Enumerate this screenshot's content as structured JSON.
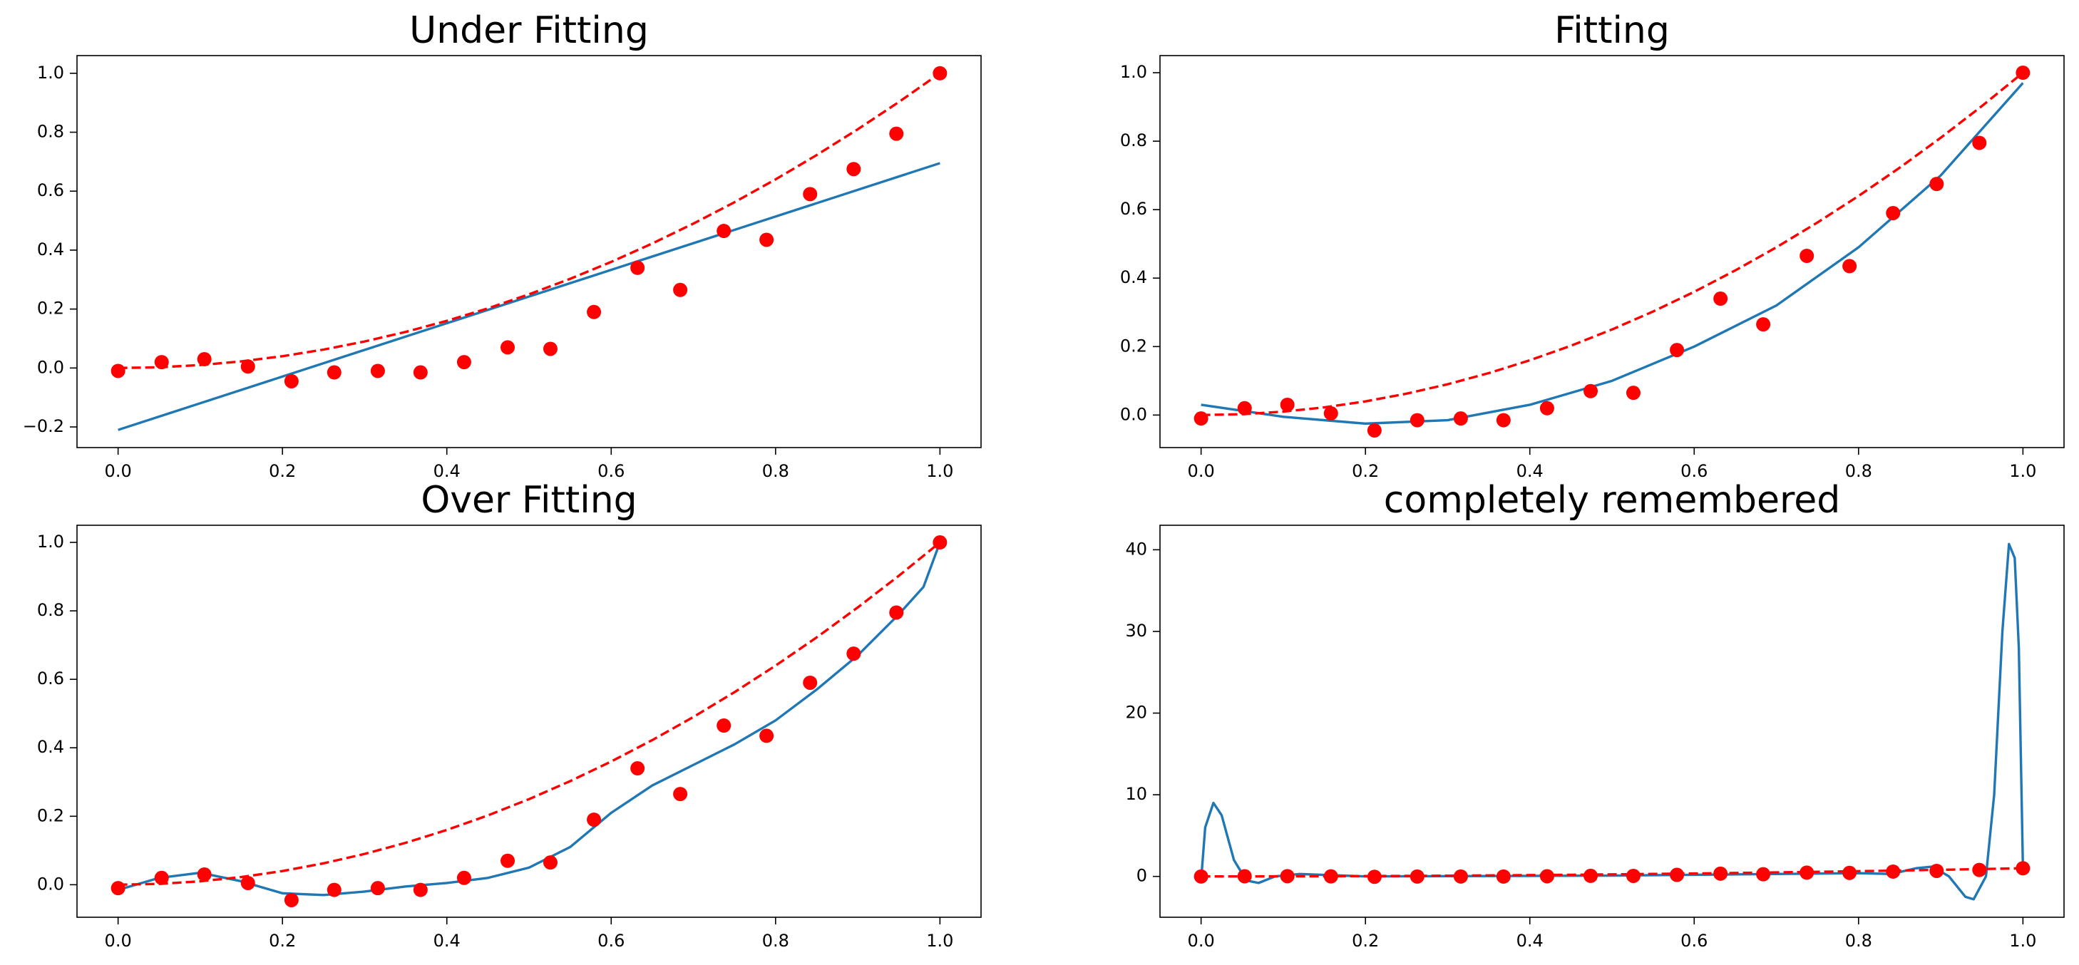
{
  "chart_data": [
    {
      "type": "line",
      "title": "Under Fitting",
      "xlim": [
        -0.05,
        1.05
      ],
      "xticks": [
        {
          "value": 0,
          "label": "0.0"
        },
        {
          "value": 0.2,
          "label": "0.2"
        },
        {
          "value": 0.4,
          "label": "0.4"
        },
        {
          "value": 0.6,
          "label": "0.6"
        },
        {
          "value": 0.8,
          "label": "0.8"
        },
        {
          "value": 1,
          "label": "1.0"
        }
      ],
      "ylim": [
        -0.27,
        1.06
      ],
      "yticks": [
        {
          "value": -0.2,
          "label": "−0.2"
        },
        {
          "value": 0,
          "label": "0.0"
        },
        {
          "value": 0.2,
          "label": "0.2"
        },
        {
          "value": 0.4,
          "label": "0.4"
        },
        {
          "value": 0.6,
          "label": "0.6"
        },
        {
          "value": 0.8,
          "label": "0.8"
        },
        {
          "value": 1,
          "label": "1.0"
        }
      ],
      "series": [
        {
          "color": "#1f77b4",
          "style": "solid",
          "x": [
            0,
            1
          ],
          "values": [
            -0.21,
            0.695
          ]
        },
        {
          "color": "#ff0000",
          "style": "dashed",
          "x": [
            0,
            0.05,
            0.1,
            0.15,
            0.2,
            0.25,
            0.3,
            0.35,
            0.4,
            0.45,
            0.5,
            0.55,
            0.6,
            0.65,
            0.7,
            0.75,
            0.8,
            0.85,
            0.9,
            0.95,
            1
          ],
          "values": [
            0,
            0.0025,
            0.01,
            0.0225,
            0.04,
            0.0625,
            0.09,
            0.1225,
            0.16,
            0.2025,
            0.25,
            0.3025,
            0.36,
            0.4225,
            0.49,
            0.5625,
            0.64,
            0.7225,
            0.81,
            0.9025,
            1
          ]
        },
        {
          "color": "#ff0000",
          "style": "dots",
          "x": [
            0,
            0.053,
            0.105,
            0.158,
            0.211,
            0.263,
            0.316,
            0.368,
            0.421,
            0.474,
            0.526,
            0.579,
            0.632,
            0.684,
            0.737,
            0.789,
            0.842,
            0.895,
            0.947,
            1
          ],
          "values": [
            -0.01,
            0.02,
            0.03,
            0.005,
            -0.045,
            -0.015,
            -0.01,
            -0.015,
            0.02,
            0.07,
            0.065,
            0.19,
            0.34,
            0.265,
            0.465,
            0.435,
            0.59,
            0.675,
            0.795,
            1
          ]
        }
      ]
    },
    {
      "type": "line",
      "title": "Fitting",
      "xlim": [
        -0.05,
        1.05
      ],
      "xticks": [
        {
          "value": 0,
          "label": "0.0"
        },
        {
          "value": 0.2,
          "label": "0.2"
        },
        {
          "value": 0.4,
          "label": "0.4"
        },
        {
          "value": 0.6,
          "label": "0.6"
        },
        {
          "value": 0.8,
          "label": "0.8"
        },
        {
          "value": 1,
          "label": "1.0"
        }
      ],
      "ylim": [
        -0.095,
        1.05
      ],
      "yticks": [
        {
          "value": 0,
          "label": "0.0"
        },
        {
          "value": 0.2,
          "label": "0.2"
        },
        {
          "value": 0.4,
          "label": "0.4"
        },
        {
          "value": 0.6,
          "label": "0.6"
        },
        {
          "value": 0.8,
          "label": "0.8"
        },
        {
          "value": 1,
          "label": "1.0"
        }
      ],
      "series": [
        {
          "color": "#1f77b4",
          "style": "solid",
          "x": [
            0,
            0.1,
            0.2,
            0.3,
            0.4,
            0.5,
            0.6,
            0.7,
            0.8,
            0.9,
            1
          ],
          "values": [
            0.03,
            -0.005,
            -0.025,
            -0.015,
            0.03,
            0.1,
            0.2,
            0.32,
            0.49,
            0.7,
            0.97
          ]
        },
        {
          "color": "#ff0000",
          "style": "dashed",
          "x": [
            0,
            0.05,
            0.1,
            0.15,
            0.2,
            0.25,
            0.3,
            0.35,
            0.4,
            0.45,
            0.5,
            0.55,
            0.6,
            0.65,
            0.7,
            0.75,
            0.8,
            0.85,
            0.9,
            0.95,
            1
          ],
          "values": [
            0,
            0.0025,
            0.01,
            0.0225,
            0.04,
            0.0625,
            0.09,
            0.1225,
            0.16,
            0.2025,
            0.25,
            0.3025,
            0.36,
            0.4225,
            0.49,
            0.5625,
            0.64,
            0.7225,
            0.81,
            0.9025,
            1
          ]
        },
        {
          "color": "#ff0000",
          "style": "dots",
          "x": [
            0,
            0.053,
            0.105,
            0.158,
            0.211,
            0.263,
            0.316,
            0.368,
            0.421,
            0.474,
            0.526,
            0.579,
            0.632,
            0.684,
            0.737,
            0.789,
            0.842,
            0.895,
            0.947,
            1
          ],
          "values": [
            -0.01,
            0.02,
            0.03,
            0.005,
            -0.045,
            -0.015,
            -0.01,
            -0.015,
            0.02,
            0.07,
            0.065,
            0.19,
            0.34,
            0.265,
            0.465,
            0.435,
            0.59,
            0.675,
            0.795,
            1
          ]
        }
      ]
    },
    {
      "type": "line",
      "title": "Over Fitting",
      "xlim": [
        -0.05,
        1.05
      ],
      "xticks": [
        {
          "value": 0,
          "label": "0.0"
        },
        {
          "value": 0.2,
          "label": "0.2"
        },
        {
          "value": 0.4,
          "label": "0.4"
        },
        {
          "value": 0.6,
          "label": "0.6"
        },
        {
          "value": 0.8,
          "label": "0.8"
        },
        {
          "value": 1,
          "label": "1.0"
        }
      ],
      "ylim": [
        -0.095,
        1.05
      ],
      "yticks": [
        {
          "value": 0,
          "label": "0.0"
        },
        {
          "value": 0.2,
          "label": "0.2"
        },
        {
          "value": 0.4,
          "label": "0.4"
        },
        {
          "value": 0.6,
          "label": "0.6"
        },
        {
          "value": 0.8,
          "label": "0.8"
        },
        {
          "value": 1,
          "label": "1.0"
        }
      ],
      "series": [
        {
          "color": "#1f77b4",
          "style": "solid",
          "x": [
            0,
            0.05,
            0.1,
            0.15,
            0.2,
            0.25,
            0.3,
            0.35,
            0.4,
            0.45,
            0.5,
            0.55,
            0.6,
            0.65,
            0.7,
            0.75,
            0.8,
            0.85,
            0.9,
            0.95,
            0.98,
            1
          ],
          "values": [
            -0.015,
            0.02,
            0.035,
            0.01,
            -0.025,
            -0.03,
            -0.02,
            -0.005,
            0.005,
            0.02,
            0.05,
            0.11,
            0.21,
            0.29,
            0.35,
            0.41,
            0.48,
            0.57,
            0.67,
            0.79,
            0.87,
            1
          ]
        },
        {
          "color": "#ff0000",
          "style": "dashed",
          "x": [
            0,
            0.05,
            0.1,
            0.15,
            0.2,
            0.25,
            0.3,
            0.35,
            0.4,
            0.45,
            0.5,
            0.55,
            0.6,
            0.65,
            0.7,
            0.75,
            0.8,
            0.85,
            0.9,
            0.95,
            1
          ],
          "values": [
            0,
            0.0025,
            0.01,
            0.0225,
            0.04,
            0.0625,
            0.09,
            0.1225,
            0.16,
            0.2025,
            0.25,
            0.3025,
            0.36,
            0.4225,
            0.49,
            0.5625,
            0.64,
            0.7225,
            0.81,
            0.9025,
            1
          ]
        },
        {
          "color": "#ff0000",
          "style": "dots",
          "x": [
            0,
            0.053,
            0.105,
            0.158,
            0.211,
            0.263,
            0.316,
            0.368,
            0.421,
            0.474,
            0.526,
            0.579,
            0.632,
            0.684,
            0.737,
            0.789,
            0.842,
            0.895,
            0.947,
            1
          ],
          "values": [
            -0.01,
            0.02,
            0.03,
            0.005,
            -0.045,
            -0.015,
            -0.01,
            -0.015,
            0.02,
            0.07,
            0.065,
            0.19,
            0.34,
            0.265,
            0.465,
            0.435,
            0.59,
            0.675,
            0.795,
            1
          ]
        }
      ]
    },
    {
      "type": "line",
      "title": "completely remembered",
      "xlim": [
        -0.05,
        1.05
      ],
      "xticks": [
        {
          "value": 0,
          "label": "0.0"
        },
        {
          "value": 0.2,
          "label": "0.2"
        },
        {
          "value": 0.4,
          "label": "0.4"
        },
        {
          "value": 0.6,
          "label": "0.6"
        },
        {
          "value": 0.8,
          "label": "0.8"
        },
        {
          "value": 1,
          "label": "1.0"
        }
      ],
      "ylim": [
        -5,
        43
      ],
      "yticks": [
        0,
        10,
        20,
        30,
        40
      ],
      "series": [
        {
          "color": "#1f77b4",
          "style": "solid",
          "x": [
            0,
            0.005,
            0.015,
            0.025,
            0.04,
            0.055,
            0.07,
            0.09,
            0.12,
            0.2,
            0.5,
            0.8,
            0.84,
            0.87,
            0.89,
            0.91,
            0.93,
            0.94,
            0.955,
            0.965,
            0.975,
            0.983,
            0.99,
            0.995,
            1
          ],
          "values": [
            -0.5,
            6,
            9,
            7.5,
            2,
            -0.5,
            -0.8,
            0,
            0.3,
            0,
            0.1,
            0.4,
            0.3,
            1,
            1.2,
            0,
            -2.5,
            -2.8,
            0,
            10,
            30,
            40.7,
            39,
            28,
            1
          ]
        },
        {
          "color": "#ff0000",
          "style": "dashed",
          "x": [
            0,
            0.05,
            0.1,
            0.15,
            0.2,
            0.25,
            0.3,
            0.35,
            0.4,
            0.45,
            0.5,
            0.55,
            0.6,
            0.65,
            0.7,
            0.75,
            0.8,
            0.85,
            0.9,
            0.95,
            1
          ],
          "values": [
            0,
            0.0025,
            0.01,
            0.0225,
            0.04,
            0.0625,
            0.09,
            0.1225,
            0.16,
            0.2025,
            0.25,
            0.3025,
            0.36,
            0.4225,
            0.49,
            0.5625,
            0.64,
            0.7225,
            0.81,
            0.9025,
            1
          ]
        },
        {
          "color": "#ff0000",
          "style": "dots",
          "x": [
            0,
            0.053,
            0.105,
            0.158,
            0.211,
            0.263,
            0.316,
            0.368,
            0.421,
            0.474,
            0.526,
            0.579,
            0.632,
            0.684,
            0.737,
            0.789,
            0.842,
            0.895,
            0.947,
            1
          ],
          "values": [
            -0.01,
            0.02,
            0.03,
            0.005,
            -0.045,
            -0.015,
            -0.01,
            -0.015,
            0.02,
            0.07,
            0.065,
            0.19,
            0.34,
            0.265,
            0.465,
            0.435,
            0.59,
            0.675,
            0.795,
            1
          ]
        }
      ]
    }
  ]
}
